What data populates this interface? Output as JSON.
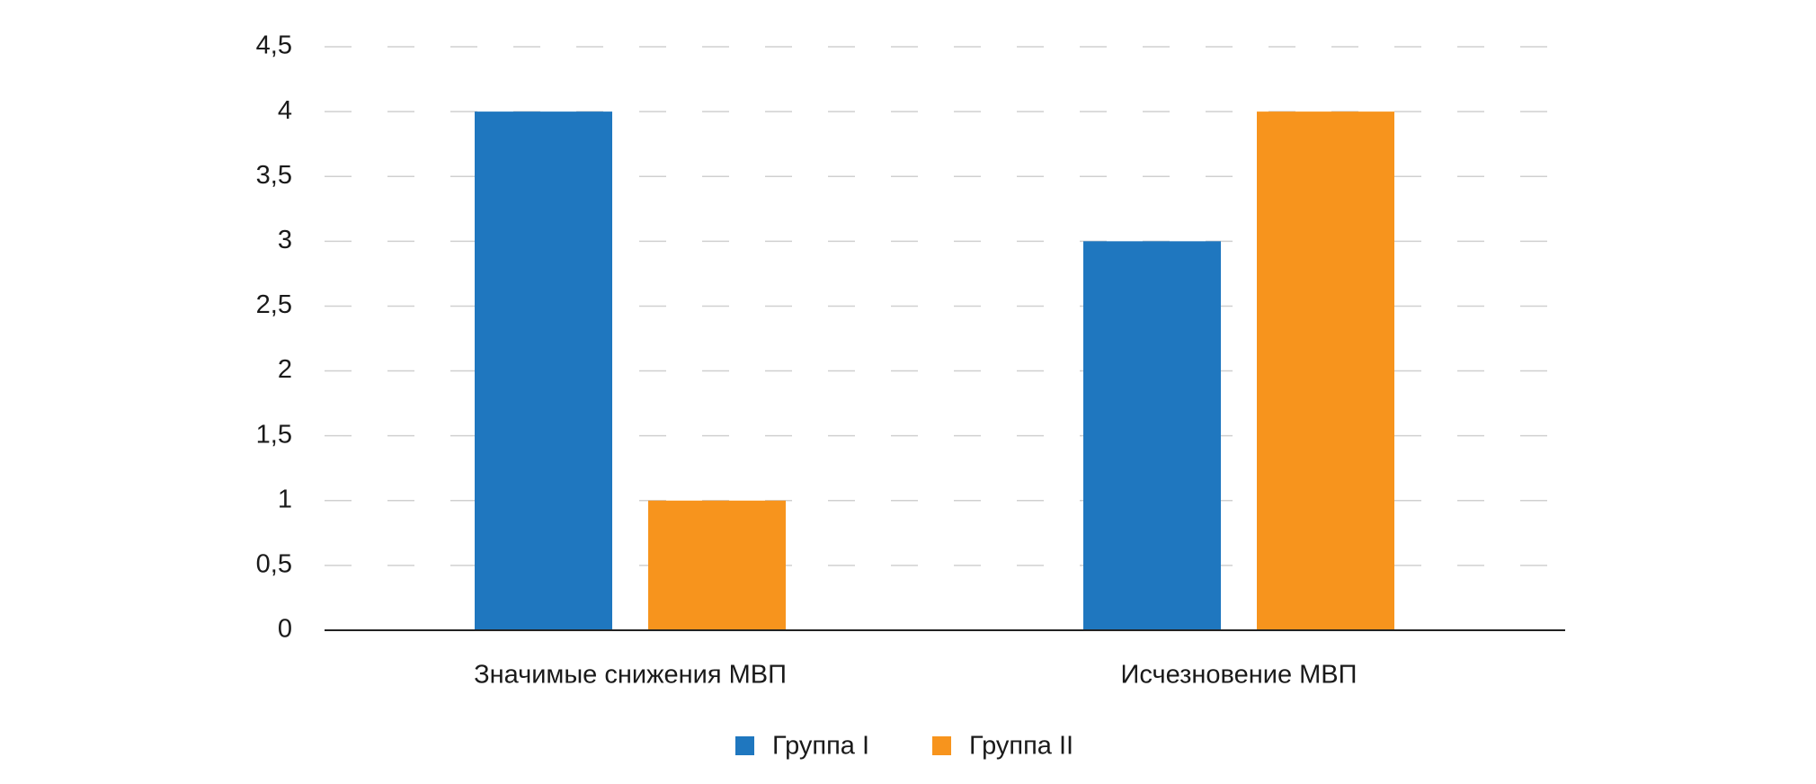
{
  "chart_data": {
    "type": "bar",
    "categories": [
      "Значимые снижения МВП",
      "Исчезновение МВП"
    ],
    "series": [
      {
        "name": "Группа I",
        "color": "#1f77bf",
        "values": [
          4,
          3
        ]
      },
      {
        "name": "Группа II",
        "color": "#f7941d",
        "values": [
          1,
          4
        ]
      }
    ],
    "ylim": [
      0,
      4.5
    ],
    "yticks": [
      0,
      {
        "value": 0.5,
        "label": "0,5"
      },
      1,
      {
        "value": 1.5,
        "label": "1,5"
      },
      2,
      {
        "value": 2.5,
        "label": "2,5"
      },
      3,
      {
        "value": 3.5,
        "label": "3,5"
      },
      4,
      {
        "value": 4.5,
        "label": "4,5"
      }
    ],
    "grid": true,
    "legend": "bottom"
  }
}
